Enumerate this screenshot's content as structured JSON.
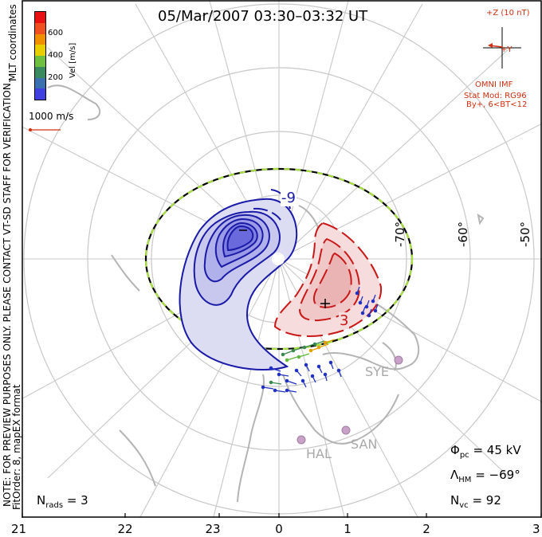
{
  "title": "05/Mar/2007 03:30–03:32 UT",
  "colorbar": {
    "label": "Vel [m/s]",
    "ticks": [
      "600",
      "400",
      "200"
    ],
    "colors": [
      "#e81010",
      "#f05020",
      "#f09000",
      "#e8d000",
      "#70c040",
      "#3a8a60",
      "#3a6fb0",
      "#4040e0"
    ]
  },
  "coord_label": "MLT coordinates",
  "scale_vector_label": "1000 m/s",
  "note_line1": "NOTE: FOR PREVIEW PURPOSES ONLY. PLEASE CONTACT VT-SD STAFF FOR VERIFICATION.",
  "note_line2": "FitOrder: 8, mapEX format",
  "imf": {
    "z_label": "+Z (10 nT)",
    "y_label": "+Y",
    "source": "OMNI IMF",
    "model_line1": "Stat Mod: RG96",
    "model_line2": "By+, 6<BT<12"
  },
  "latitude_labels": [
    "-70°",
    "-60°",
    "-50°"
  ],
  "mlt_labels": [
    "21",
    "22",
    "23",
    "0",
    "1",
    "2",
    "3"
  ],
  "contour_labels": {
    "negative": "-9",
    "positive": "3"
  },
  "potential_markers": {
    "min": "–",
    "max": "+"
  },
  "stations": [
    "SYE",
    "HAL",
    "SAN"
  ],
  "stats": {
    "phi_pc": {
      "symbol": "Φ",
      "sub": "pc",
      "value": "= 45 kV"
    },
    "lambda_hm": {
      "symbol": "Λ",
      "sub": "HM",
      "value": "= −69°"
    },
    "n_vc": {
      "symbol": "N",
      "sub": "vc",
      "value": "= 92"
    },
    "n_rads": {
      "symbol": "N",
      "sub": "rads",
      "value": "= 3"
    }
  }
}
